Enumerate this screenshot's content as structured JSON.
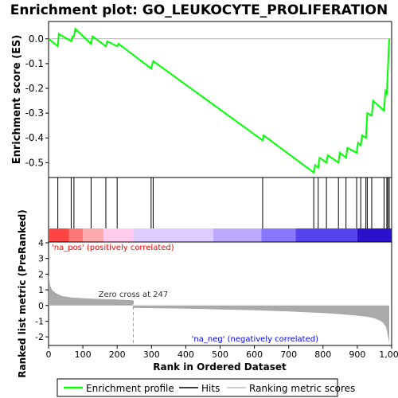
{
  "chart_data": {
    "type": "line",
    "title": "Enrichment plot: GO_LEUKOCYTE_PROLIFERATION",
    "top_panel": {
      "ylabel": "Enrichment score (ES)",
      "ylim": [
        -0.56,
        0.07
      ],
      "yticks": [
        0.0,
        -0.1,
        -0.2,
        -0.3,
        -0.4,
        -0.5
      ],
      "ytick_labels": [
        "0.0",
        "-0.1",
        "-0.2",
        "-0.3",
        "-0.4",
        "-0.5"
      ],
      "series": [
        {
          "name": "Enrichment profile",
          "color": "#00ff00",
          "x": [
            0,
            27,
            30,
            66,
            70,
            74,
            78,
            124,
            128,
            167,
            171,
            200,
            204,
            299,
            301,
            305,
            624,
            627,
            773,
            777,
            786,
            790,
            810,
            814,
            845,
            849,
            867,
            871,
            898,
            902,
            910,
            914,
            925,
            929,
            942,
            946,
            978,
            982,
            986,
            989,
            993
          ],
          "y": [
            0.0,
            -0.03,
            0.02,
            -0.01,
            0.01,
            0.01,
            0.04,
            -0.02,
            0.01,
            -0.03,
            -0.01,
            -0.03,
            -0.02,
            -0.12,
            -0.11,
            -0.09,
            -0.41,
            -0.39,
            -0.54,
            -0.51,
            -0.52,
            -0.48,
            -0.5,
            -0.47,
            -0.5,
            -0.46,
            -0.48,
            -0.44,
            -0.46,
            -0.42,
            -0.43,
            -0.39,
            -0.4,
            -0.3,
            -0.31,
            -0.25,
            -0.29,
            -0.21,
            -0.22,
            -0.12,
            0.0
          ]
        }
      ]
    },
    "hits_panel": {
      "hit_ranks": [
        27,
        66,
        74,
        124,
        167,
        200,
        299,
        305,
        624,
        773,
        786,
        810,
        845,
        867,
        898,
        910,
        925,
        929,
        942,
        978,
        986,
        989,
        993
      ],
      "heat_colors": [
        "#ff4444",
        "#ff7777",
        "#ffaaaa",
        "#ffccee",
        "#ddccff",
        "#bbaaff",
        "#8877ff",
        "#5544ee",
        "#2a12cc"
      ],
      "heat_stops": [
        0,
        60,
        100,
        160,
        247,
        480,
        620,
        720,
        900,
        1000
      ]
    },
    "bottom_panel": {
      "ylabel": "Ranked list metric (PreRanked)",
      "xlabel": "Rank in Ordered Dataset",
      "ylim": [
        -2.55,
        4.05
      ],
      "yticks": [
        4,
        3,
        2,
        1,
        0,
        -1,
        -2
      ],
      "ytick_labels": [
        "4",
        "3",
        "2",
        "1",
        "0",
        "-1",
        "-2"
      ],
      "metric_x": [
        0,
        5,
        10,
        20,
        40,
        70,
        110,
        160,
        200,
        246,
        247,
        300,
        400,
        500,
        600,
        700,
        800,
        850,
        900,
        930,
        950,
        965,
        975,
        983,
        988,
        993
      ],
      "metric_y": [
        1.95,
        1.25,
        1.0,
        0.8,
        0.6,
        0.5,
        0.45,
        0.41,
        0.38,
        0.33,
        -0.15,
        -0.17,
        -0.2,
        -0.25,
        -0.3,
        -0.38,
        -0.48,
        -0.55,
        -0.65,
        -0.72,
        -0.82,
        -0.95,
        -1.1,
        -1.35,
        -1.8,
        -2.4
      ],
      "zero_cross_rank": 247,
      "zero_cross_label": "Zero cross at 247",
      "pos_label": "'na_pos' (positively correlated)",
      "neg_label": "'na_neg' (negatively correlated)",
      "pos_color": "#ff0000",
      "neg_color": "#0000ff",
      "fill_color": "#aaaaaa"
    },
    "xlim": [
      0,
      1000
    ],
    "xticks": [
      0,
      100,
      200,
      300,
      400,
      500,
      600,
      700,
      800,
      900,
      1000
    ],
    "xtick_labels": [
      "0",
      "100",
      "200",
      "300",
      "400",
      "500",
      "600",
      "700",
      "800",
      "900",
      "1,000"
    ],
    "legend": {
      "placement": "bottom",
      "items": [
        {
          "label": "Enrichment profile",
          "color": "#00ff00",
          "kind": "line"
        },
        {
          "label": "Hits",
          "color": "#000000",
          "kind": "line"
        },
        {
          "label": "Ranking metric scores",
          "color": "#bbbbbb",
          "kind": "line"
        }
      ]
    }
  }
}
